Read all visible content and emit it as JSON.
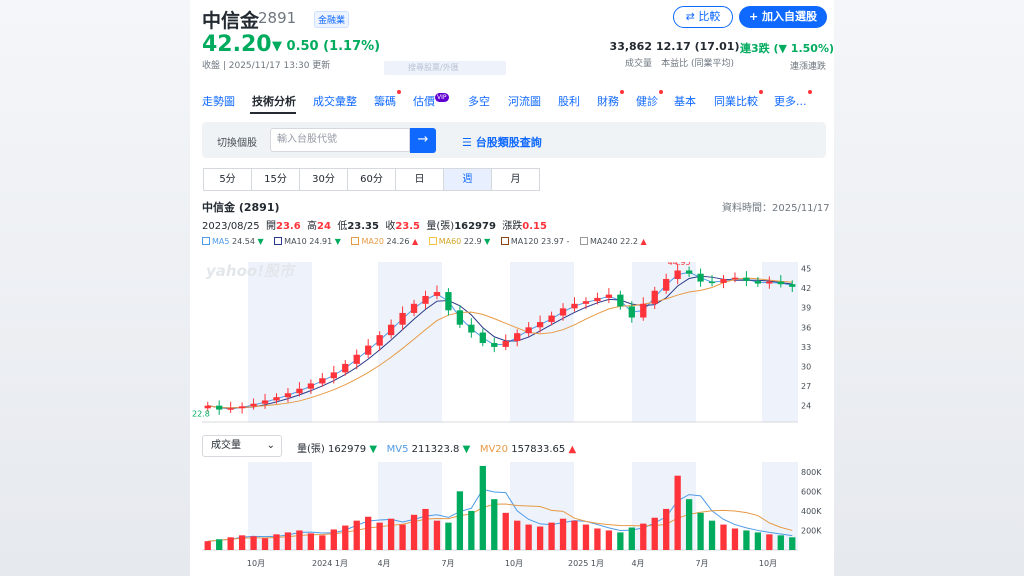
{
  "header": {
    "name": "中信金",
    "code": "2891",
    "sector": "金融業",
    "compare_label": "比較",
    "watchlist_label": "加入自選股",
    "price": "42.20",
    "change": "▼ 0.50 (1.17%)",
    "market_status": "收盤 | 2025/11/17 13:30 更新",
    "ghost_search": "搜尋股票/外匯"
  },
  "stats": {
    "volume": {
      "value": "33,862",
      "label": "成交量"
    },
    "pe": {
      "value": "12.17 (17.01)",
      "label": "本益比 (同業平均)"
    },
    "streak": {
      "value": "連3跌 (▼ 1.50%)",
      "label": "連漲連跌"
    }
  },
  "tabs": [
    {
      "label": "走勢圖",
      "dot": false
    },
    {
      "label": "技術分析",
      "dot": false,
      "active": true
    },
    {
      "label": "成交彙整",
      "dot": false
    },
    {
      "label": "籌碼",
      "dot": true
    },
    {
      "label": "估價",
      "dot": false,
      "badge": "VIP"
    },
    {
      "label": "多空",
      "dot": false
    },
    {
      "label": "河流圖",
      "dot": false
    },
    {
      "label": "股利",
      "dot": false
    },
    {
      "label": "財務",
      "dot": true
    },
    {
      "label": "健診",
      "dot": true
    },
    {
      "label": "基本",
      "dot": false
    },
    {
      "label": "同業比較",
      "dot": true
    },
    {
      "label": "更多...",
      "dot": true
    }
  ],
  "stock_search": {
    "label": "切換個股",
    "placeholder": "輸入台股代號",
    "go_icon": "arrow-right-icon",
    "category_link": "台股類股查詢"
  },
  "periods": [
    "5分",
    "15分",
    "30分",
    "60分",
    "日",
    "週",
    "月"
  ],
  "active_period": "週",
  "chart_info": {
    "title": "中信金 (2891)",
    "as_of": "資料時間：2025/11/17",
    "date": "2023/08/25",
    "open_label": "開",
    "open": "23.6",
    "high_label": "高",
    "high": "24",
    "low_label": "低",
    "low": "23.35",
    "close_label": "收",
    "close": "23.5",
    "vol_label": "量(張)",
    "vol": "162979",
    "chg_label": "漲跌",
    "chg": "0.15"
  },
  "ma_legend": [
    {
      "label": "MA5",
      "value": "24.54",
      "dir": "▼",
      "color": "#4f9be7"
    },
    {
      "label": "MA10",
      "value": "24.91",
      "dir": "▼",
      "color": "#2b3a8a"
    },
    {
      "label": "MA20",
      "value": "24.26",
      "dir": "▲",
      "color": "#e69a45"
    },
    {
      "label": "MA60",
      "value": "22.9",
      "dir": "▼",
      "color": "#f5c542"
    },
    {
      "label": "MA120",
      "value": "23.97",
      "dir": "-",
      "color": "#8b4513"
    },
    {
      "label": "MA240",
      "value": "22.2",
      "dir": "▲",
      "color": "#999999"
    }
  ],
  "volume_panel": {
    "selector": "成交量",
    "vol_label": "量(張)",
    "vol": "162979",
    "vol_dir": "▼",
    "mv5_label": "MV5",
    "mv5": "211323.8",
    "mv5_dir": "▼",
    "mv20_label": "MV20",
    "mv20": "157833.65",
    "mv20_dir": "▲"
  },
  "chart_data": [
    {
      "type": "candlestick",
      "watermark": "yahoo!股市",
      "y_ticks": [
        "45",
        "42",
        "39",
        "36",
        "33",
        "30",
        "27",
        "24"
      ],
      "ylim": [
        21.5,
        46
      ],
      "max_label": "44.95",
      "min_label": "22.8",
      "x_ticks": [
        "10月",
        "2024 1月",
        "4月",
        "7月",
        "10月",
        "2025 1月",
        "4月",
        "7月",
        "10月"
      ],
      "close_series": [
        24.0,
        23.4,
        23.6,
        23.9,
        24.3,
        24.8,
        25.3,
        25.9,
        26.6,
        27.4,
        28.2,
        29.1,
        30.4,
        31.8,
        33.2,
        34.8,
        36.4,
        38.2,
        39.6,
        40.8,
        41.4,
        38.6,
        36.4,
        35.2,
        33.6,
        33.0,
        33.9,
        35.1,
        36.0,
        36.8,
        37.8,
        38.9,
        39.6,
        40.0,
        40.5,
        41.0,
        39.2,
        37.5,
        39.6,
        41.6,
        43.4,
        44.7,
        44.2,
        43.0,
        42.8,
        43.4,
        43.6,
        43.1,
        42.7,
        43.0,
        42.6,
        42.2
      ],
      "colors": {
        "up": "#ff333a",
        "down": "#00ab5e"
      }
    },
    {
      "type": "bar",
      "name": "成交量",
      "y_ticks": [
        "800K",
        "600K",
        "400K",
        "200K"
      ],
      "ylim": [
        0,
        900000
      ],
      "values": [
        90000,
        110000,
        130000,
        150000,
        140000,
        120000,
        160000,
        180000,
        200000,
        170000,
        150000,
        210000,
        250000,
        300000,
        340000,
        280000,
        320000,
        260000,
        360000,
        420000,
        300000,
        280000,
        600000,
        400000,
        860000,
        520000,
        380000,
        300000,
        260000,
        240000,
        280000,
        320000,
        300000,
        260000,
        220000,
        200000,
        180000,
        230000,
        270000,
        330000,
        420000,
        760000,
        520000,
        380000,
        300000,
        260000,
        220000,
        200000,
        180000,
        160000,
        150000,
        130000
      ],
      "colors": {
        "up": "#ff333a",
        "down": "#00ab5e"
      }
    }
  ]
}
